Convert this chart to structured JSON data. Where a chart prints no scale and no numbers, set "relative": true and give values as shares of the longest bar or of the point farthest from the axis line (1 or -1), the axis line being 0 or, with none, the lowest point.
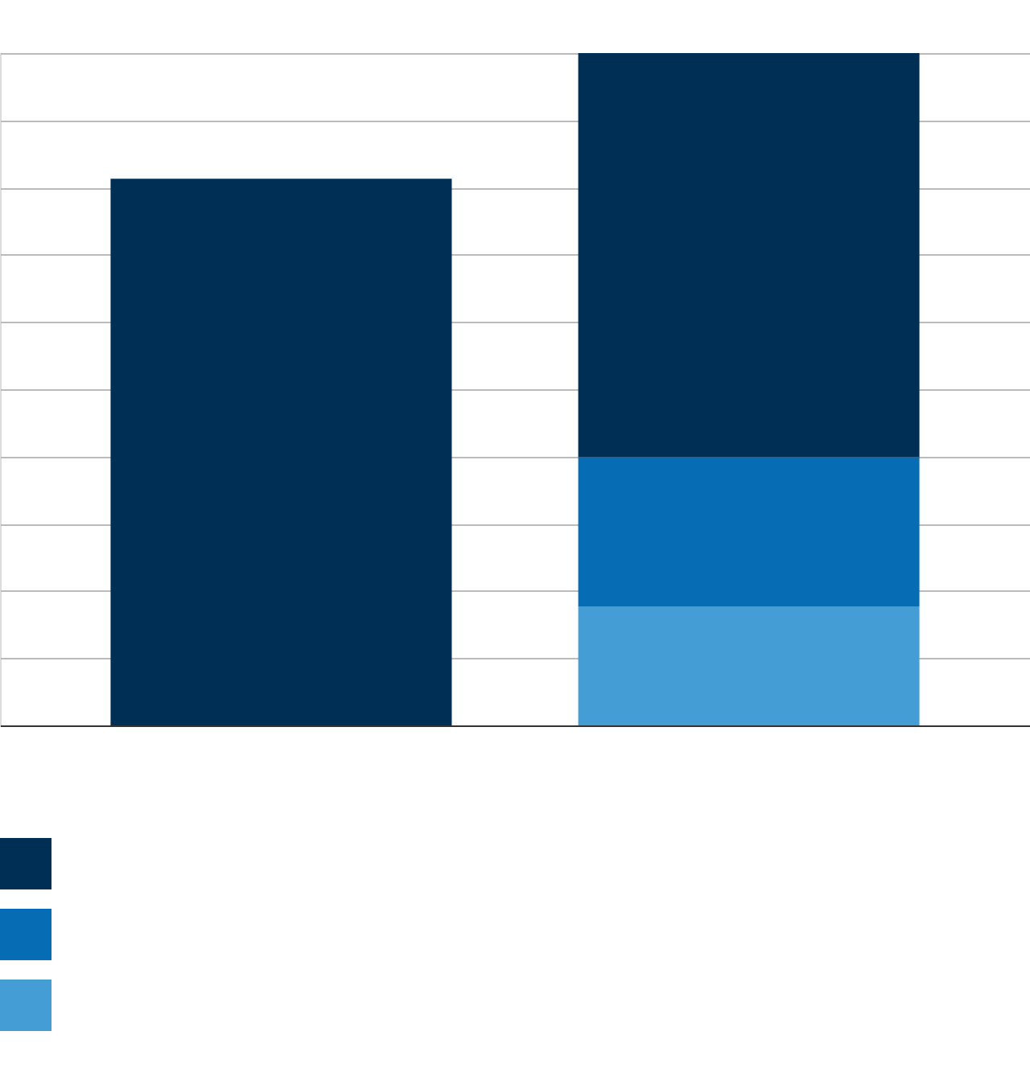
{
  "chart_data": {
    "type": "bar",
    "stacked": true,
    "relative": true,
    "categories": [
      null,
      null
    ],
    "series": [
      {
        "color": "#459dd6",
        "values": [
          null,
          0.177
        ]
      },
      {
        "color": "#066db5",
        "values": [
          null,
          0.222
        ]
      },
      {
        "color": "#002f56",
        "values": [
          0.813,
          0.601
        ]
      }
    ],
    "grid": "y"
  }
}
